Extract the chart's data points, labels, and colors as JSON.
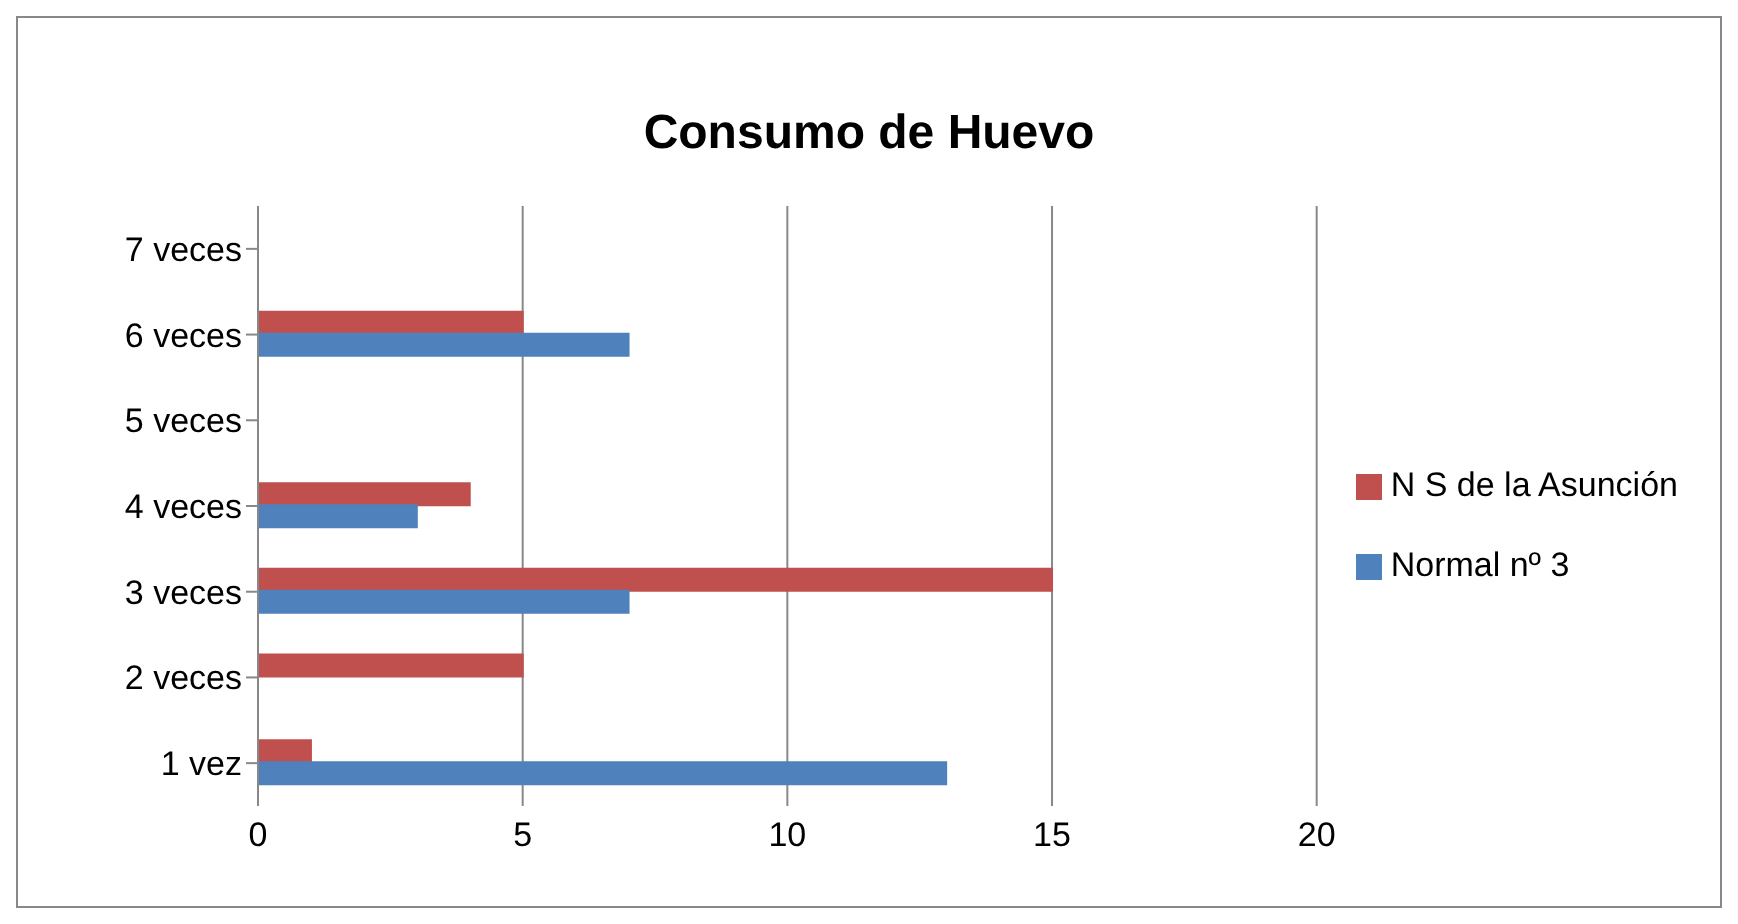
{
  "chart_data": {
    "type": "bar",
    "orientation": "horizontal",
    "title": "Consumo de Huevo",
    "categories": [
      "7 veces",
      "6 veces",
      "5 veces",
      "4 veces",
      "3 veces",
      "2 veces",
      "1 vez"
    ],
    "series": [
      {
        "name": "N S de la Asunción",
        "color": "#c0504d",
        "values": [
          null,
          5,
          null,
          4,
          15,
          5,
          1
        ]
      },
      {
        "name": "Normal nº 3",
        "color": "#4f81bd",
        "values": [
          null,
          7,
          null,
          3,
          7,
          null,
          13
        ]
      }
    ],
    "xlim": [
      0,
      20
    ],
    "xticks": [
      0,
      5,
      10,
      15,
      20
    ],
    "grid": "x",
    "legend": "right"
  }
}
